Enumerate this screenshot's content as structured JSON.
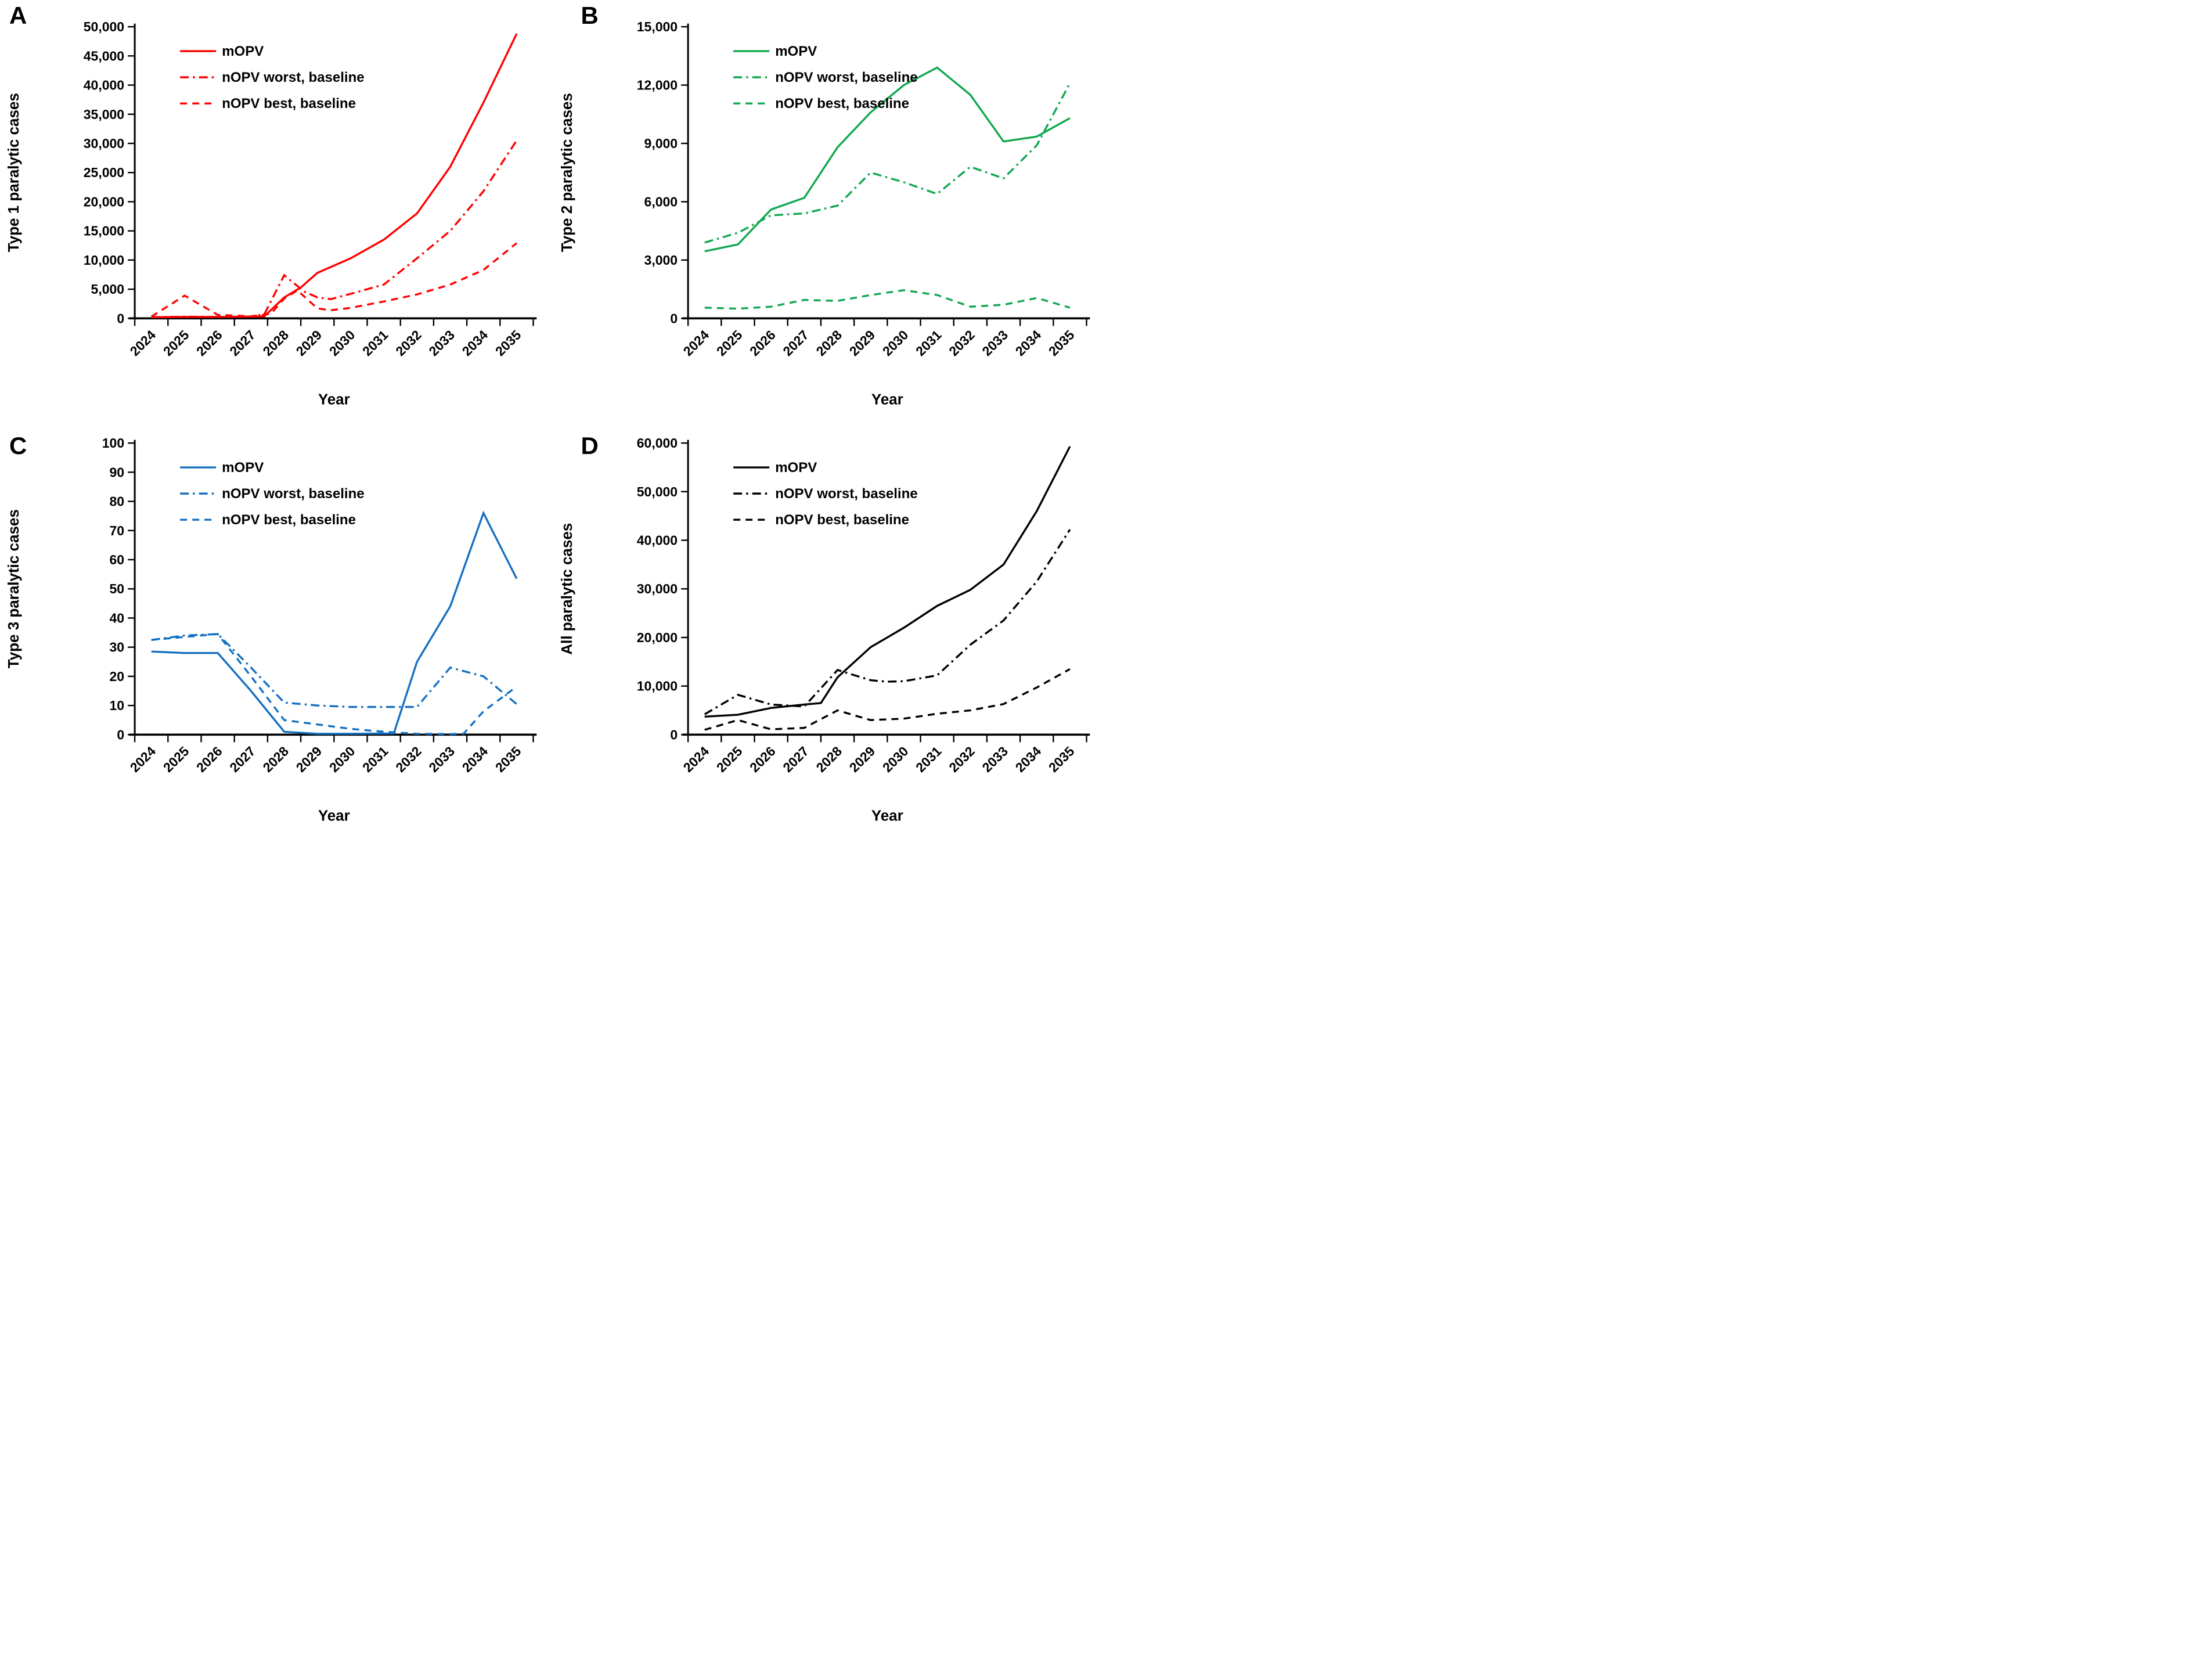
{
  "figure": {
    "xlabel": "Year",
    "years": [
      "2024",
      "2025",
      "2026",
      "2027",
      "2028",
      "2029",
      "2030",
      "2031",
      "2032",
      "2033",
      "2034",
      "2035"
    ],
    "legend_labels": [
      "mOPV",
      "nOPV worst, baseline",
      "nOPV best, baseline"
    ],
    "line_styles": [
      "solid",
      "dashdot",
      "dash"
    ],
    "panel_colors": {
      "A": "#FF0000",
      "B": "#10A84F",
      "C": "#1570C0",
      "D": "#000000"
    }
  },
  "chart_data": [
    {
      "type": "line",
      "letter": "A",
      "ylabel": "Type 1 paralytic cases",
      "xlabel": "Year",
      "color": "#FF0000",
      "ylim": [
        0,
        50000
      ],
      "grid": false,
      "legend_position": "top-left-inside",
      "ytick_labels": [
        "0",
        "5,000",
        "10,000",
        "15,000",
        "20,000",
        "25,000",
        "30,000",
        "35,000",
        "40,000",
        "45,000",
        "50,000"
      ],
      "categories": [
        "2024",
        "2025",
        "2026",
        "2027",
        "2028",
        "2029",
        "2030",
        "2031",
        "2032",
        "2033",
        "2034",
        "2035"
      ],
      "series": [
        {
          "name": "mOPV",
          "style": "solid",
          "points": [
            [
              2024,
              200
            ],
            [
              2025,
              250
            ],
            [
              2026,
              250
            ],
            [
              2027,
              300
            ],
            [
              2027.4,
              350
            ],
            [
              2028,
              3600
            ],
            [
              2028.5,
              5300
            ],
            [
              2029,
              7800
            ],
            [
              2030,
              10300
            ],
            [
              2031,
              13500
            ],
            [
              2032,
              18000
            ],
            [
              2033,
              26000
            ],
            [
              2034,
              37000
            ],
            [
              2035,
              48800
            ]
          ]
        },
        {
          "name": "nOPV worst, baseline",
          "style": "dashdot",
          "points": [
            [
              2024,
              200
            ],
            [
              2025,
              300
            ],
            [
              2026,
              250
            ],
            [
              2027,
              300
            ],
            [
              2027.4,
              700
            ],
            [
              2028,
              7400
            ],
            [
              2028.6,
              4600
            ],
            [
              2029,
              3600
            ],
            [
              2029.4,
              3300
            ],
            [
              2030,
              4200
            ],
            [
              2031,
              5800
            ],
            [
              2032,
              10300
            ],
            [
              2033,
              15000
            ],
            [
              2034,
              21800
            ],
            [
              2035,
              30500
            ]
          ]
        },
        {
          "name": "nOPV best, baseline",
          "style": "dash",
          "points": [
            [
              2024,
              300
            ],
            [
              2025,
              3900
            ],
            [
              2026,
              600
            ],
            [
              2027,
              350
            ],
            [
              2027.6,
              800
            ],
            [
              2028,
              3400
            ],
            [
              2028.4,
              4800
            ],
            [
              2029,
              1700
            ],
            [
              2029.4,
              1400
            ],
            [
              2030,
              1800
            ],
            [
              2031,
              2900
            ],
            [
              2032,
              4100
            ],
            [
              2033,
              5800
            ],
            [
              2034,
              8300
            ],
            [
              2035,
              12900
            ]
          ]
        }
      ]
    },
    {
      "type": "line",
      "letter": "B",
      "ylabel": "Type 2 paralytic cases",
      "xlabel": "Year",
      "color": "#10A84F",
      "ylim": [
        0,
        15000
      ],
      "grid": false,
      "legend_position": "top-left-inside",
      "ytick_labels": [
        "0",
        "3,000",
        "6,000",
        "9,000",
        "12,000",
        "15,000"
      ],
      "categories": [
        "2024",
        "2025",
        "2026",
        "2027",
        "2028",
        "2029",
        "2030",
        "2031",
        "2032",
        "2033",
        "2034",
        "2035"
      ],
      "series": [
        {
          "name": "mOPV",
          "style": "solid",
          "points": [
            [
              2024,
              3450
            ],
            [
              2025,
              3800
            ],
            [
              2026,
              5600
            ],
            [
              2027,
              6200
            ],
            [
              2028,
              8800
            ],
            [
              2029,
              10600
            ],
            [
              2030,
              12000
            ],
            [
              2031,
              12900
            ],
            [
              2032,
              11500
            ],
            [
              2033,
              9100
            ],
            [
              2034,
              9350
            ],
            [
              2035,
              10300
            ]
          ]
        },
        {
          "name": "nOPV worst, baseline",
          "style": "dashdot",
          "points": [
            [
              2024,
              3900
            ],
            [
              2025,
              4400
            ],
            [
              2026,
              5300
            ],
            [
              2027,
              5400
            ],
            [
              2028,
              5800
            ],
            [
              2029,
              7500
            ],
            [
              2030,
              7000
            ],
            [
              2031,
              6400
            ],
            [
              2032,
              7800
            ],
            [
              2033,
              7200
            ],
            [
              2034,
              8900
            ],
            [
              2035,
              12100
            ]
          ]
        },
        {
          "name": "nOPV best, baseline",
          "style": "dash",
          "points": [
            [
              2024,
              550
            ],
            [
              2025,
              500
            ],
            [
              2026,
              600
            ],
            [
              2027,
              950
            ],
            [
              2028,
              900
            ],
            [
              2029,
              1200
            ],
            [
              2030,
              1450
            ],
            [
              2031,
              1200
            ],
            [
              2032,
              600
            ],
            [
              2033,
              700
            ],
            [
              2034,
              1050
            ],
            [
              2035,
              550
            ]
          ]
        }
      ]
    },
    {
      "type": "line",
      "letter": "C",
      "ylabel": "Type 3 paralytic cases",
      "xlabel": "Year",
      "color": "#1570C0",
      "ylim": [
        0,
        100
      ],
      "grid": false,
      "legend_position": "top-left-inside",
      "ytick_labels": [
        "0",
        "10",
        "20",
        "30",
        "40",
        "50",
        "60",
        "70",
        "80",
        "90",
        "100"
      ],
      "categories": [
        "2024",
        "2025",
        "2026",
        "2027",
        "2028",
        "2029",
        "2030",
        "2031",
        "2032",
        "2033",
        "2034",
        "2035"
      ],
      "series": [
        {
          "name": "mOPV",
          "style": "solid",
          "points": [
            [
              2024,
              28.5
            ],
            [
              2025,
              28
            ],
            [
              2026,
              28
            ],
            [
              2027,
              15
            ],
            [
              2028,
              1
            ],
            [
              2029,
              0.3
            ],
            [
              2030,
              0.3
            ],
            [
              2031,
              0.4
            ],
            [
              2031.3,
              0.4
            ],
            [
              2032,
              25
            ],
            [
              2033,
              44
            ],
            [
              2034,
              76
            ],
            [
              2035,
              53.5
            ]
          ]
        },
        {
          "name": "nOPV worst, baseline",
          "style": "dashdot",
          "points": [
            [
              2024,
              32.5
            ],
            [
              2025,
              34
            ],
            [
              2026,
              34.5
            ],
            [
              2027,
              23
            ],
            [
              2028,
              11
            ],
            [
              2029,
              10
            ],
            [
              2030,
              9.5
            ],
            [
              2031,
              9.5
            ],
            [
              2032,
              9.5
            ],
            [
              2033,
              23
            ],
            [
              2034,
              20
            ],
            [
              2035,
              10.5
            ]
          ]
        },
        {
          "name": "nOPV best, baseline",
          "style": "dash",
          "points": [
            [
              2024,
              32.5
            ],
            [
              2025,
              33.5
            ],
            [
              2026,
              34.5
            ],
            [
              2027,
              20
            ],
            [
              2028,
              5
            ],
            [
              2029,
              3.5
            ],
            [
              2030,
              2
            ],
            [
              2031,
              1
            ],
            [
              2032,
              0.3
            ],
            [
              2033,
              0.2
            ],
            [
              2033.4,
              0.3
            ],
            [
              2034,
              8
            ],
            [
              2035,
              16.5
            ]
          ]
        }
      ]
    },
    {
      "type": "line",
      "letter": "D",
      "ylabel": "All paralytic cases",
      "xlabel": "Year",
      "color": "#000000",
      "ylim": [
        0,
        60000
      ],
      "grid": false,
      "legend_position": "top-left-inside",
      "ytick_labels": [
        "0",
        "10,000",
        "20,000",
        "30,000",
        "40,000",
        "50,000",
        "60,000"
      ],
      "categories": [
        "2024",
        "2025",
        "2026",
        "2027",
        "2028",
        "2029",
        "2030",
        "2031",
        "2032",
        "2033",
        "2034",
        "2035"
      ],
      "series": [
        {
          "name": "mOPV",
          "style": "solid",
          "points": [
            [
              2024,
              3700
            ],
            [
              2025,
              4100
            ],
            [
              2026,
              5500
            ],
            [
              2027,
              6200
            ],
            [
              2027.5,
              6500
            ],
            [
              2028,
              11800
            ],
            [
              2029,
              18000
            ],
            [
              2030,
              22000
            ],
            [
              2031,
              26500
            ],
            [
              2032,
              29800
            ],
            [
              2033,
              35000
            ],
            [
              2034,
              46000
            ],
            [
              2035,
              59300
            ]
          ]
        },
        {
          "name": "nOPV worst, baseline",
          "style": "dashdot",
          "points": [
            [
              2024,
              4200
            ],
            [
              2025,
              8200
            ],
            [
              2026,
              6200
            ],
            [
              2027,
              5800
            ],
            [
              2028,
              13300
            ],
            [
              2029,
              11200
            ],
            [
              2029.5,
              10900
            ],
            [
              2030,
              11000
            ],
            [
              2031,
              12200
            ],
            [
              2032,
              18500
            ],
            [
              2033,
              23500
            ],
            [
              2034,
              31500
            ],
            [
              2035,
              42200
            ]
          ]
        },
        {
          "name": "nOPV best, baseline",
          "style": "dash",
          "points": [
            [
              2024,
              1000
            ],
            [
              2025,
              3000
            ],
            [
              2026,
              1100
            ],
            [
              2027,
              1400
            ],
            [
              2028,
              5000
            ],
            [
              2029,
              3000
            ],
            [
              2030,
              3300
            ],
            [
              2031,
              4300
            ],
            [
              2032,
              5000
            ],
            [
              2033,
              6300
            ],
            [
              2034,
              9700
            ],
            [
              2035,
              13500
            ]
          ]
        }
      ]
    }
  ]
}
